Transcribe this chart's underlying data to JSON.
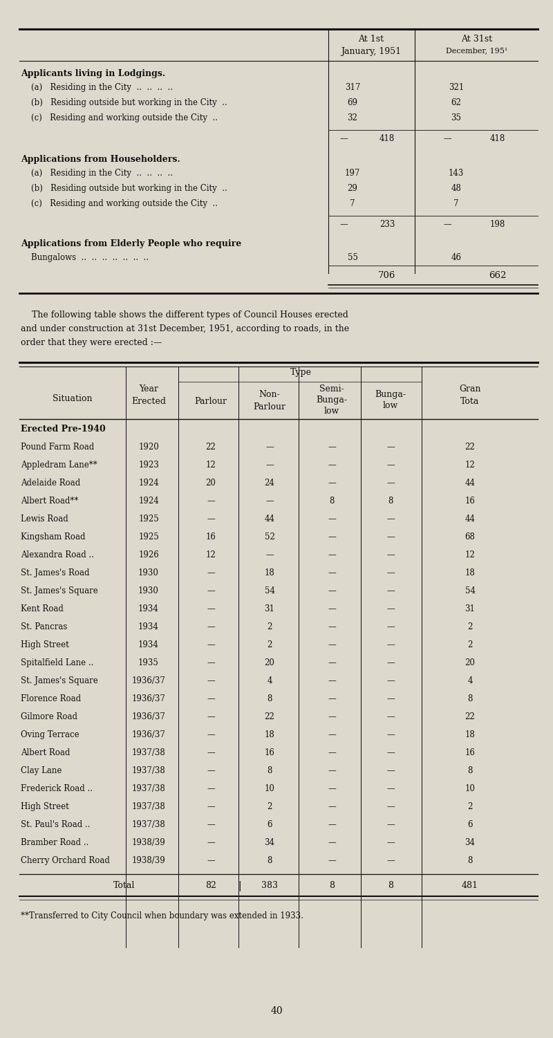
{
  "bg_color": "#ddd9cc",
  "text_color": "#1a1a1a",
  "top_table": {
    "sections": [
      {
        "header": "Applicants living in Lodgings.",
        "rows": [
          {
            "label": "    (a)   Residing in the City  ..  ..  ..  ..",
            "v1": "317",
            "v2": "321"
          },
          {
            "label": "    (b)   Residing outside but working in the City  ..",
            "v1": "69",
            "v2": "62"
          },
          {
            "label": "    (c)   Residing and working outside the City  ..",
            "v1": "32",
            "v2": "35"
          }
        ],
        "subtotal_v1": "418",
        "subtotal_v2": "418"
      },
      {
        "header": "Applications from Householders.",
        "rows": [
          {
            "label": "    (a)   Residing in the City  ..  ..  ..  ..",
            "v1": "197",
            "v2": "143"
          },
          {
            "label": "    (b)   Residing outside but working in the City  ..",
            "v1": "29",
            "v2": "48"
          },
          {
            "label": "    (c)   Residing and working outside the City  ..",
            "v1": "7",
            "v2": "7"
          }
        ],
        "subtotal_v1": "233",
        "subtotal_v2": "198"
      }
    ],
    "elderly_header": "Applications from Elderly People who require",
    "elderly_sub": "    Bungalows  ..  ..  ..  ..  ..  ..  ..",
    "elderly_v1": "55",
    "elderly_v2": "46",
    "grand_total_v1": "706",
    "grand_total_v2": "662"
  },
  "paragraph_lines": [
    "    The following table shows the different types of Council Houses erected",
    "and under construction at 31st December, 1951, according to roads, in the",
    "order that they were erected :—"
  ],
  "bottom_table": {
    "rows": [
      {
        "situation": "Pound Farm Road",
        "dots": "  ..",
        "year": "1920",
        "parlour": "22",
        "non_parlour": "—",
        "semi_bung": "—",
        "bung": "—",
        "total": "22"
      },
      {
        "situation": "Appledram Lane**",
        "dots": "  ..",
        "year": "1923",
        "parlour": "12",
        "non_parlour": "—",
        "semi_bung": "—",
        "bung": "—",
        "total": "12"
      },
      {
        "situation": "Adelaide Road",
        "dots": "  ..",
        "year": "1924",
        "parlour": "20",
        "non_parlour": "24",
        "semi_bung": "—",
        "bung": "—",
        "total": "44"
      },
      {
        "situation": "Albert Road**",
        "dots": "  ..",
        "year": "1924",
        "parlour": "—",
        "non_parlour": "—",
        "semi_bung": "8",
        "bung": "8",
        "total": "16"
      },
      {
        "situation": "Lewis Road",
        "dots": "  ..",
        "year": "1925",
        "parlour": "—",
        "non_parlour": "44",
        "semi_bung": "—",
        "bung": "—",
        "total": "44"
      },
      {
        "situation": "Kingsham Road",
        "dots": "  ..",
        "year": "1925",
        "parlour": "16",
        "non_parlour": "52",
        "semi_bung": "—",
        "bung": "—",
        "total": "68"
      },
      {
        "situation": "Alexandra Road ..",
        "dots": "  ..",
        "year": "1926",
        "parlour": "12",
        "non_parlour": "—",
        "semi_bung": "—",
        "bung": "—",
        "total": "12"
      },
      {
        "situation": "St. James's Road",
        "dots": "  ..",
        "year": "1930",
        "parlour": "—",
        "non_parlour": "18",
        "semi_bung": "—",
        "bung": "—",
        "total": "18"
      },
      {
        "situation": "St. James's Square",
        "dots": "  ..",
        "year": "1930",
        "parlour": "—",
        "non_parlour": "54",
        "semi_bung": "—",
        "bung": "—",
        "total": "54"
      },
      {
        "situation": "Kent Road",
        "dots": "  ..",
        "year": "1934",
        "parlour": "—",
        "non_parlour": "31",
        "semi_bung": "—",
        "bung": "—",
        "total": "31"
      },
      {
        "situation": "St. Pancras",
        "dots": "  ..",
        "year": "1934",
        "parlour": "—",
        "non_parlour": "2",
        "semi_bung": "—",
        "bung": "—",
        "total": "2"
      },
      {
        "situation": "High Street",
        "dots": "  ..",
        "year": "1934",
        "parlour": "—",
        "non_parlour": "2",
        "semi_bung": "—",
        "bung": "—",
        "total": "2"
      },
      {
        "situation": "Spitalfield Lane ..",
        "dots": "  ..",
        "year": "1935",
        "parlour": "—",
        "non_parlour": "20",
        "semi_bung": "—",
        "bung": "—",
        "total": "20"
      },
      {
        "situation": "St. James's Square",
        "dots": "  ..",
        "year": "1936/37",
        "parlour": "—",
        "non_parlour": "4",
        "semi_bung": "—",
        "bung": "—",
        "total": "4"
      },
      {
        "situation": "Florence Road",
        "dots": "  ..",
        "year": "1936/37",
        "parlour": "—",
        "non_parlour": "8",
        "semi_bung": "—",
        "bung": "—",
        "total": "8"
      },
      {
        "situation": "Gilmore Road",
        "dots": "  ..",
        "year": "1936/37",
        "parlour": "—",
        "non_parlour": "22",
        "semi_bung": "—",
        "bung": "—",
        "total": "22"
      },
      {
        "situation": "Oving Terrace",
        "dots": "  ..",
        "year": "1936/37",
        "parlour": "—",
        "non_parlour": "18",
        "semi_bung": "—",
        "bung": "—",
        "total": "18"
      },
      {
        "situation": "Albert Road",
        "dots": "  ..",
        "year": "1937/38",
        "parlour": "—",
        "non_parlour": "16",
        "semi_bung": "—",
        "bung": "—",
        "total": "16"
      },
      {
        "situation": "Clay Lane",
        "dots": "  ..",
        "year": "1937/38",
        "parlour": "—",
        "non_parlour": "8",
        "semi_bung": "—",
        "bung": "—",
        "total": "8"
      },
      {
        "situation": "Frederick Road ..",
        "dots": "  ..",
        "year": "1937/38",
        "parlour": "—",
        "non_parlour": "10",
        "semi_bung": "—",
        "bung": "—",
        "total": "10"
      },
      {
        "situation": "High Street",
        "dots": "  ..",
        "year": "1937/38",
        "parlour": "—",
        "non_parlour": "2",
        "semi_bung": "—",
        "bung": "—",
        "total": "2"
      },
      {
        "situation": "St. Paul's Road ..",
        "dots": "  ..",
        "year": "1937/38",
        "parlour": "—",
        "non_parlour": "6",
        "semi_bung": "—",
        "bung": "—",
        "total": "6"
      },
      {
        "situation": "Bramber Road ..",
        "dots": "  ..",
        "year": "1938/39",
        "parlour": "—",
        "non_parlour": "34",
        "semi_bung": "—",
        "bung": "—",
        "total": "34"
      },
      {
        "situation": "Cherry Orchard Road",
        "dots": "  ..",
        "year": "1938/39",
        "parlour": "—",
        "non_parlour": "8",
        "semi_bung": "—",
        "bung": "—",
        "total": "8"
      }
    ],
    "total_row": {
      "parlour": "82",
      "non_parlour": "383",
      "semi_bung": "8",
      "bung": "8",
      "total": "481"
    }
  },
  "footnote": "**Transferred to City Council when boundary was extended in 1933.",
  "page_number": "40"
}
